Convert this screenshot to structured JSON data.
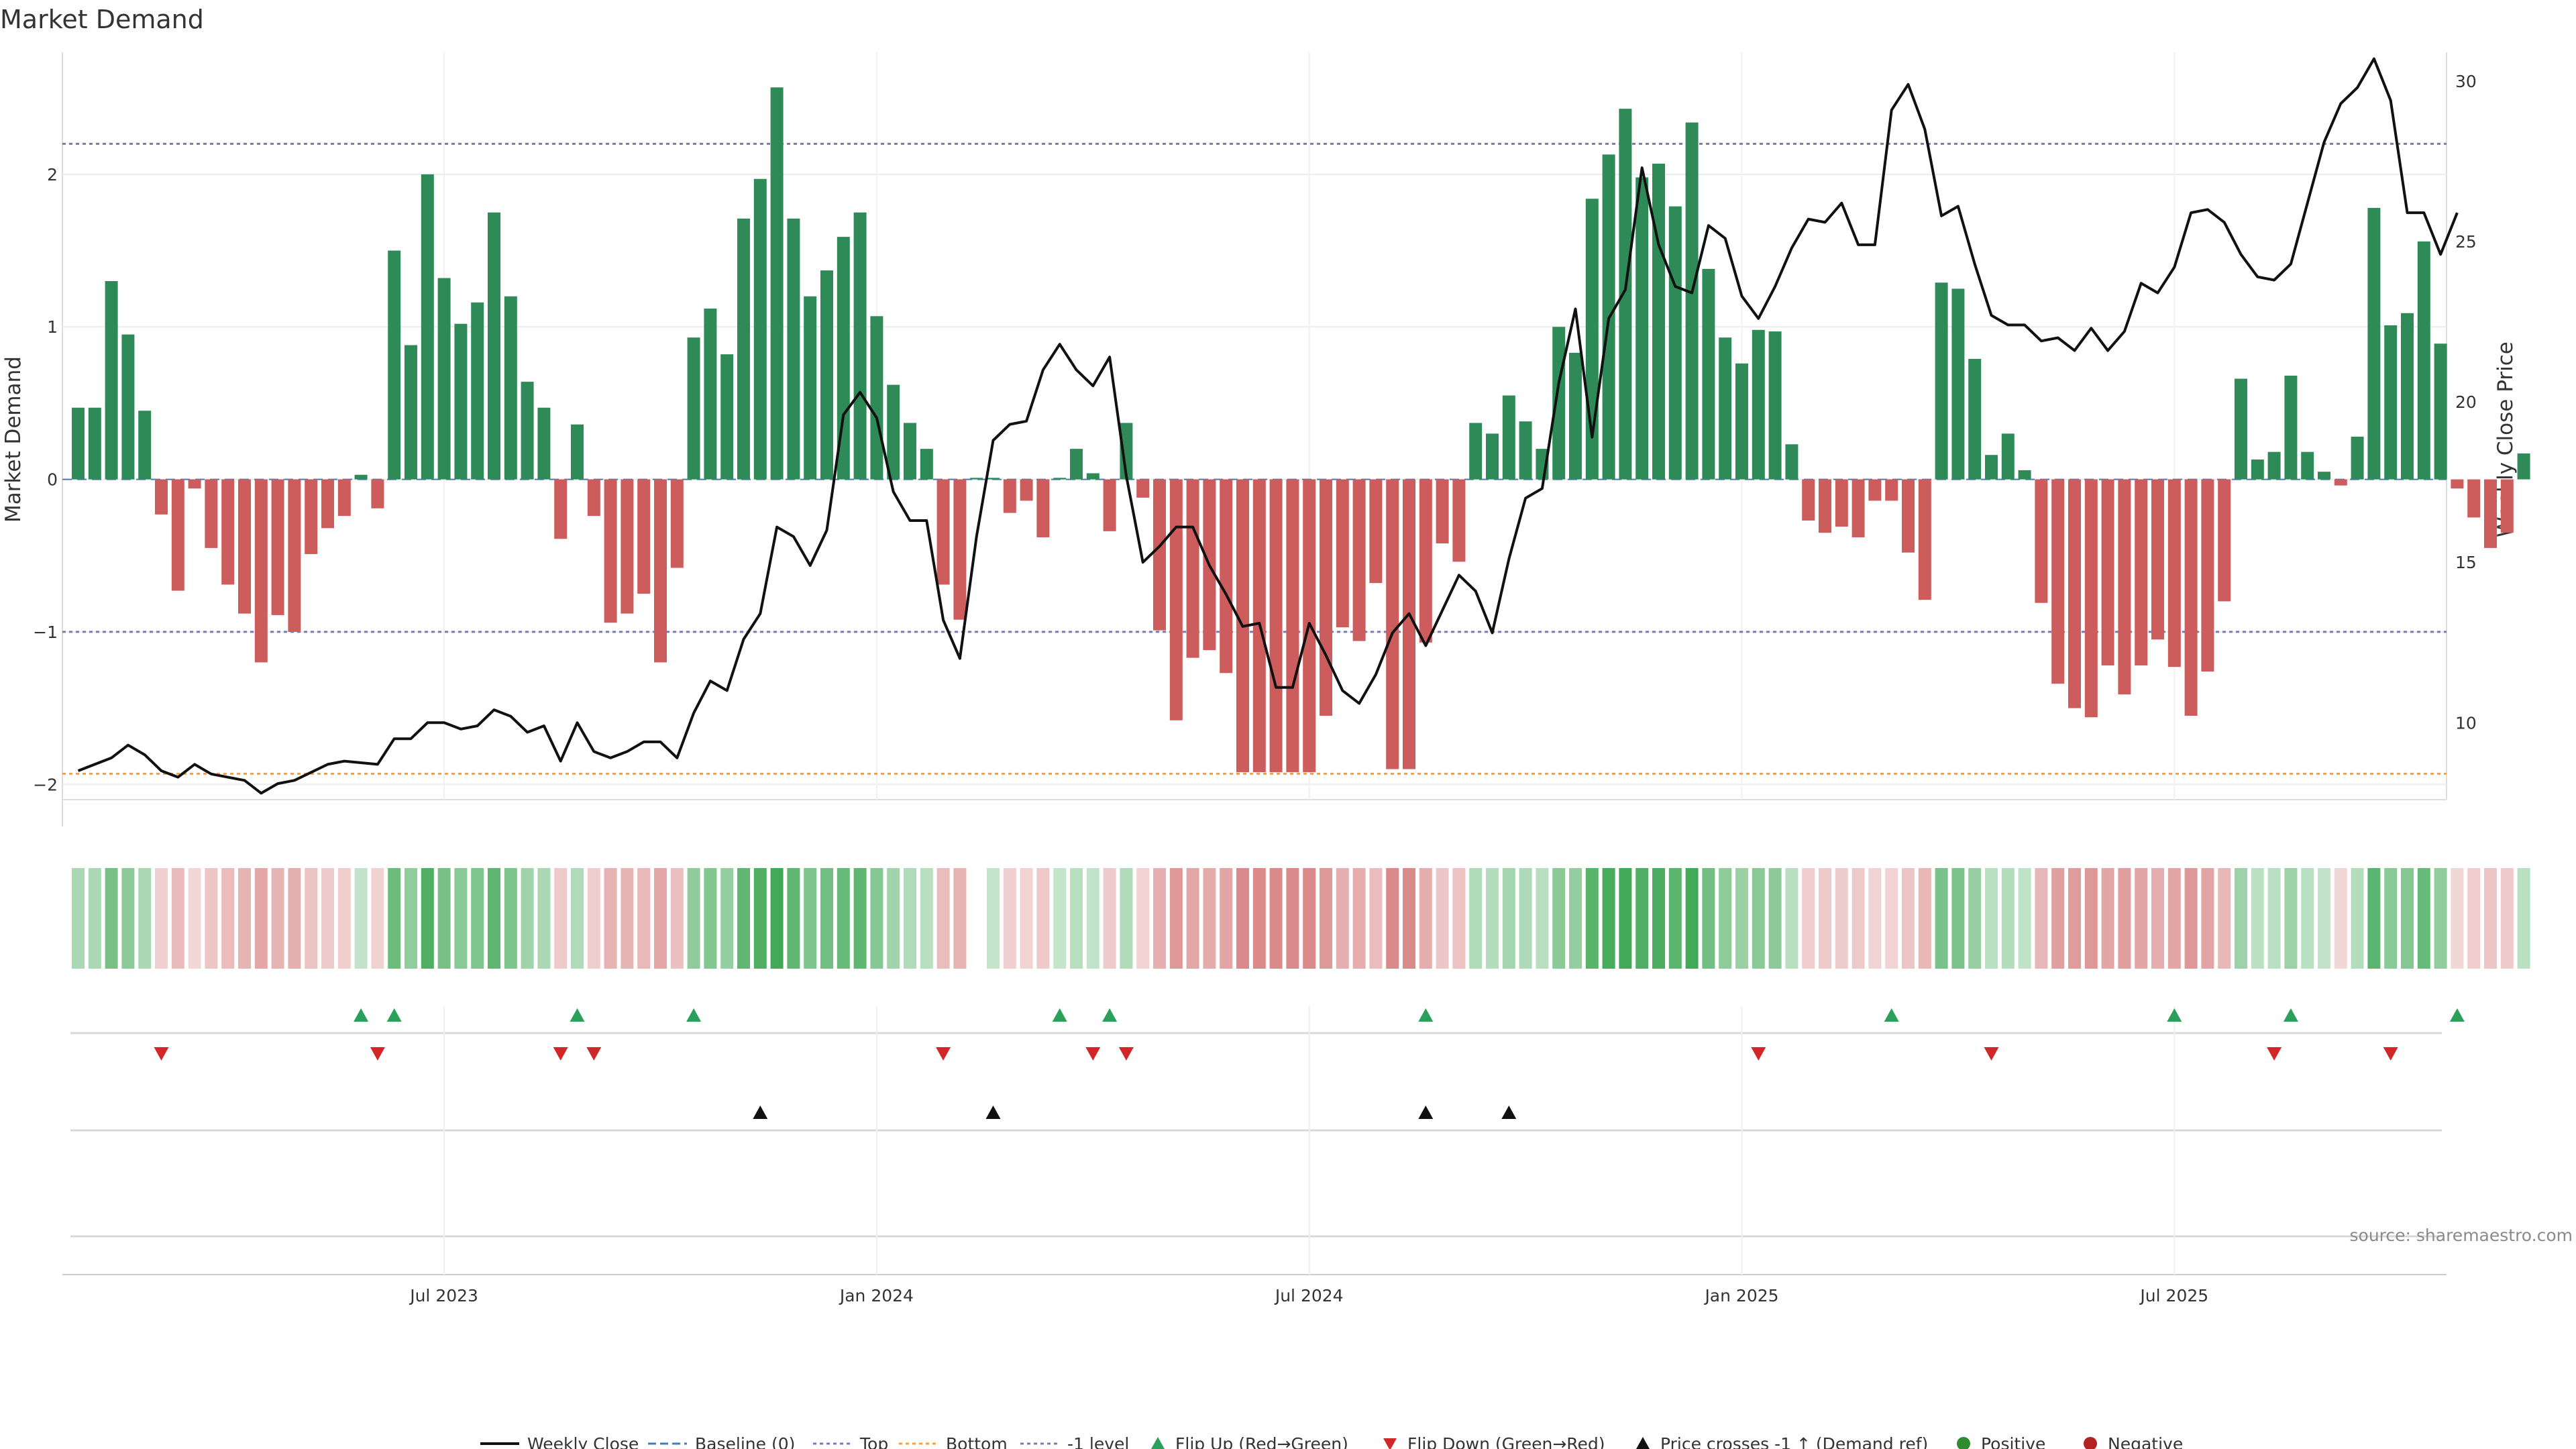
{
  "chart_data": {
    "type": "bar",
    "title": "Market Demand",
    "ylabel_left": "Market Demand",
    "ylabel_right": "Weekly Close Price",
    "ylim_left": [
      -2.1,
      2.8
    ],
    "yticks_left": [
      2,
      1,
      0,
      -1,
      -2
    ],
    "ytick_labels_left": [
      "2",
      "1",
      "0",
      "−1",
      "−2"
    ],
    "ylim_right": [
      7.6,
      30.9
    ],
    "yticks_right": [
      30,
      25,
      20,
      15,
      10
    ],
    "ytick_labels_right": [
      "30",
      "25",
      "20",
      "15",
      "10"
    ],
    "x_range": [
      0,
      143.6
    ],
    "xticks": [
      22,
      48,
      74,
      100,
      126
    ],
    "xtick_labels": [
      "Jul 2023",
      "Jan 2024",
      "Jul 2024",
      "Jan 2025",
      "Jul 2025"
    ],
    "reference_lines": {
      "top": 2.2,
      "bottom": -1.93,
      "minus_one": -1.0,
      "baseline": 0
    },
    "demand": [
      0.47,
      0.47,
      1.3,
      0.95,
      0.45,
      -0.23,
      -0.73,
      -0.06,
      -0.45,
      -0.69,
      -0.88,
      -1.2,
      -0.89,
      -1.0,
      -0.49,
      -0.32,
      -0.24,
      0.03,
      -0.19,
      1.5,
      0.88,
      2.0,
      1.32,
      1.02,
      1.16,
      1.75,
      1.2,
      0.64,
      0.47,
      -0.39,
      0.36,
      -0.24,
      -0.94,
      -0.88,
      -0.75,
      -1.2,
      -0.58,
      0.93,
      1.12,
      0.82,
      1.71,
      1.97,
      2.57,
      1.71,
      1.2,
      1.37,
      1.59,
      1.75,
      1.07,
      0.62,
      0.37,
      0.2,
      -0.69,
      -0.92,
      0.01,
      0.01,
      -0.22,
      -0.14,
      -0.38,
      0.01,
      0.2,
      0.04,
      -0.34,
      0.37,
      -0.12,
      -0.99,
      -1.58,
      -1.17,
      -1.12,
      -1.27,
      -1.92,
      -1.92,
      -1.92,
      -1.92,
      -1.92,
      -1.55,
      -0.97,
      -1.06,
      -0.68,
      -1.9,
      -1.9,
      -1.07,
      -0.42,
      -0.54,
      0.37,
      0.3,
      0.55,
      0.38,
      0.2,
      1.0,
      0.83,
      1.84,
      2.13,
      2.43,
      1.98,
      2.07,
      1.79,
      2.34,
      1.38,
      0.93,
      0.76,
      0.98,
      0.97,
      0.23,
      -0.27,
      -0.35,
      -0.31,
      -0.38,
      -0.14,
      -0.14,
      -0.48,
      -0.79,
      1.29,
      1.25,
      0.79,
      0.16,
      0.3,
      0.06,
      -0.81,
      -1.34,
      -1.5,
      -1.56,
      -1.22,
      -1.41,
      -1.22,
      -1.05,
      -1.23,
      -1.55,
      -1.26,
      -0.8,
      0.66,
      0.13,
      0.18,
      0.68,
      0.18,
      0.05,
      -0.04,
      0.28,
      1.78,
      1.01,
      1.09,
      1.56,
      0.89,
      -0.06,
      -0.25,
      -0.45,
      -0.35,
      0.17
    ],
    "weekly_close": [
      [
        0,
        8.5
      ],
      [
        2,
        8.9
      ],
      [
        3,
        9.3
      ],
      [
        4,
        9.0
      ],
      [
        5,
        8.5
      ],
      [
        6,
        8.3
      ],
      [
        7,
        8.7
      ],
      [
        8,
        8.4
      ],
      [
        10,
        8.2
      ],
      [
        11,
        7.8
      ],
      [
        12,
        8.1
      ],
      [
        13,
        8.2
      ],
      [
        15,
        8.7
      ],
      [
        16,
        8.8
      ],
      [
        18,
        8.7
      ],
      [
        19,
        9.5
      ],
      [
        20,
        9.5
      ],
      [
        21,
        10.0
      ],
      [
        22,
        10.0
      ],
      [
        23,
        9.8
      ],
      [
        24,
        9.9
      ],
      [
        25,
        10.4
      ],
      [
        26,
        10.2
      ],
      [
        27,
        9.7
      ],
      [
        28,
        9.9
      ],
      [
        29,
        8.8
      ],
      [
        30,
        10.0
      ],
      [
        31,
        9.1
      ],
      [
        32,
        8.9
      ],
      [
        33,
        9.1
      ],
      [
        34,
        9.4
      ],
      [
        35,
        9.4
      ],
      [
        36,
        8.9
      ],
      [
        37,
        10.3
      ],
      [
        38,
        11.3
      ],
      [
        39,
        11.0
      ],
      [
        40,
        12.6
      ],
      [
        41,
        13.4
      ],
      [
        42,
        16.1
      ],
      [
        43,
        15.8
      ],
      [
        44,
        14.9
      ],
      [
        45,
        16.0
      ],
      [
        46,
        19.6
      ],
      [
        47,
        20.3
      ],
      [
        48,
        19.5
      ],
      [
        49,
        17.2
      ],
      [
        50,
        16.3
      ],
      [
        51,
        16.3
      ],
      [
        52,
        13.2
      ],
      [
        53,
        12.0
      ],
      [
        54,
        15.8
      ],
      [
        55,
        18.8
      ],
      [
        56,
        19.3
      ],
      [
        57,
        19.4
      ],
      [
        58,
        21.0
      ],
      [
        59,
        21.8
      ],
      [
        60,
        21.0
      ],
      [
        61,
        20.5
      ],
      [
        62,
        21.4
      ],
      [
        63,
        17.7
      ],
      [
        64,
        15.0
      ],
      [
        65,
        15.5
      ],
      [
        66,
        16.1
      ],
      [
        67,
        16.1
      ],
      [
        68,
        14.9
      ],
      [
        69,
        14.0
      ],
      [
        70,
        13.0
      ],
      [
        71,
        13.1
      ],
      [
        72,
        11.1
      ],
      [
        73,
        11.1
      ],
      [
        74,
        13.1
      ],
      [
        75,
        12.1
      ],
      [
        76,
        11.0
      ],
      [
        77,
        10.6
      ],
      [
        78,
        11.5
      ],
      [
        79,
        12.8
      ],
      [
        80,
        13.4
      ],
      [
        81,
        12.4
      ],
      [
        82,
        13.5
      ],
      [
        83,
        14.6
      ],
      [
        84,
        14.1
      ],
      [
        85,
        12.8
      ],
      [
        86,
        15.1
      ],
      [
        87,
        17.0
      ],
      [
        88,
        17.3
      ],
      [
        89,
        20.6
      ],
      [
        90,
        22.9
      ],
      [
        91,
        18.9
      ],
      [
        92,
        22.6
      ],
      [
        93,
        23.5
      ],
      [
        94,
        27.3
      ],
      [
        95,
        24.9
      ],
      [
        96,
        23.6
      ],
      [
        97,
        23.4
      ],
      [
        98,
        25.5
      ],
      [
        99,
        25.1
      ],
      [
        100,
        23.3
      ],
      [
        101,
        22.6
      ],
      [
        102,
        23.6
      ],
      [
        103,
        24.8
      ],
      [
        104,
        25.7
      ],
      [
        105,
        25.6
      ],
      [
        106,
        26.2
      ],
      [
        107,
        24.9
      ],
      [
        108,
        24.9
      ],
      [
        109,
        29.1
      ],
      [
        110,
        29.9
      ],
      [
        111,
        28.5
      ],
      [
        112,
        25.8
      ],
      [
        113,
        26.1
      ],
      [
        114,
        24.3
      ],
      [
        115,
        22.7
      ],
      [
        116,
        22.4
      ],
      [
        117,
        22.4
      ],
      [
        118,
        21.9
      ],
      [
        119,
        22.0
      ],
      [
        120,
        21.6
      ],
      [
        121,
        22.3
      ],
      [
        122,
        21.6
      ],
      [
        123,
        22.2
      ],
      [
        124,
        23.7
      ],
      [
        125,
        23.4
      ],
      [
        126,
        24.2
      ],
      [
        127,
        25.9
      ],
      [
        128,
        26.0
      ],
      [
        129,
        25.6
      ],
      [
        130,
        24.6
      ],
      [
        131,
        23.9
      ],
      [
        132,
        23.8
      ],
      [
        133,
        24.3
      ],
      [
        134,
        26.2
      ],
      [
        135,
        28.1
      ],
      [
        136,
        29.3
      ],
      [
        137,
        29.8
      ],
      [
        138,
        30.7
      ],
      [
        139,
        29.4
      ],
      [
        140,
        25.9
      ],
      [
        141,
        25.9
      ],
      [
        142,
        24.6
      ],
      [
        143,
        25.9
      ]
    ],
    "flip_up_weeks": [
      17,
      19,
      30,
      37,
      59,
      62,
      81,
      109,
      126,
      133,
      143
    ],
    "flip_down_weeks": [
      5,
      18,
      29,
      31,
      52,
      61,
      63,
      101,
      115,
      132,
      139
    ],
    "price_cross_weeks": [
      41,
      55,
      81,
      86
    ],
    "source": "source: sharemaestro.com",
    "legend": [
      {
        "key": "weekly_close",
        "label": "Weekly Close",
        "color": "#111111"
      },
      {
        "key": "baseline",
        "label": "Baseline (0)",
        "color": "#4a7ab8"
      },
      {
        "key": "top",
        "label": "Top",
        "color": "#7a78b8"
      },
      {
        "key": "bottom",
        "label": "Bottom",
        "color": "#f0a048"
      },
      {
        "key": "minus_one",
        "label": "-1 level",
        "color": "#7a78b8"
      },
      {
        "key": "flip_up",
        "label": "Flip Up (Red→Green)",
        "color": "#2ca05a"
      },
      {
        "key": "flip_down",
        "label": "Flip Down (Green→Red)",
        "color": "#d02828"
      },
      {
        "key": "price_cross",
        "label": "Price crosses -1 ↑ (Demand ref)",
        "color": "#111111"
      },
      {
        "key": "positive",
        "label": "Positive",
        "color": "#2e8b2e"
      },
      {
        "key": "negative",
        "label": "Negative",
        "color": "#b22222"
      }
    ]
  },
  "colors": {
    "positive_bar": "#2e8b57",
    "negative_bar": "#cd5c5c",
    "grid": "#ececec"
  }
}
